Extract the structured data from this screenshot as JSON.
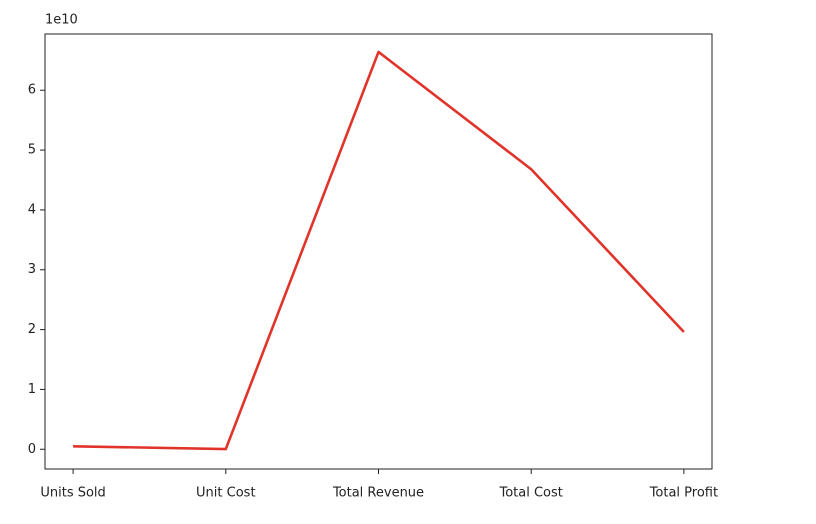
{
  "chart_data": {
    "type": "line",
    "offset_label": "1e10",
    "categories": [
      "Units Sold",
      "Unit Cost",
      "Total Revenue",
      "Total Cost",
      "Total Profit"
    ],
    "series": [
      {
        "color": "#e0342a",
        "values": [
          0.05,
          0.003,
          6.64,
          4.68,
          1.96
        ]
      }
    ],
    "ylim": [
      -0.33,
      6.94
    ],
    "yticks": [
      0,
      1,
      2,
      3,
      4,
      5,
      6
    ]
  }
}
